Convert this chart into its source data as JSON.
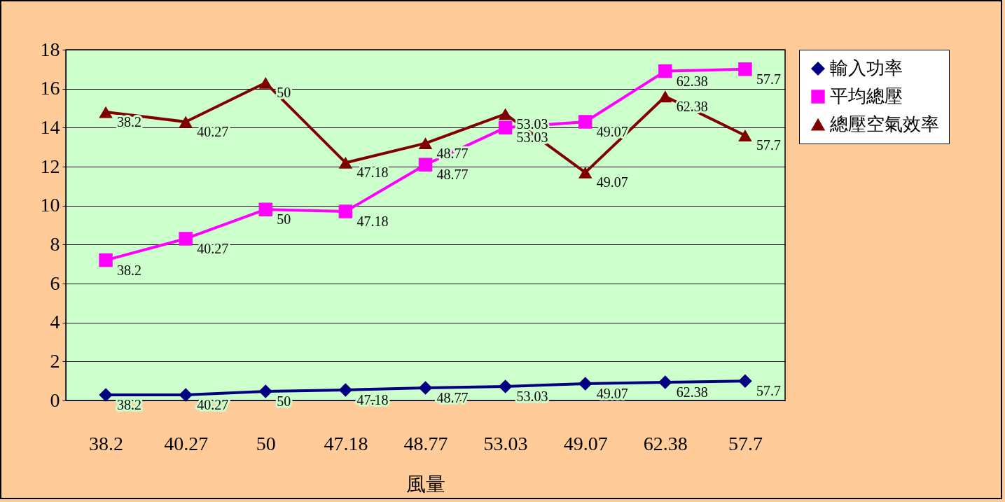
{
  "chart_data": {
    "type": "line",
    "xlabel": "風量",
    "categories": [
      "38.2",
      "40.27",
      "50",
      "47.18",
      "48.77",
      "53.03",
      "49.07",
      "62.38",
      "57.7"
    ],
    "series": [
      {
        "name": "輸入功率",
        "color": "#000080",
        "marker": "diamond",
        "values": [
          0.29,
          0.29,
          0.47,
          0.54,
          0.65,
          0.72,
          0.86,
          0.93,
          1.0
        ]
      },
      {
        "name": "平均總壓",
        "color": "#ff00ff",
        "marker": "square",
        "values": [
          7.2,
          8.3,
          9.8,
          9.7,
          12.1,
          14.0,
          14.3,
          16.9,
          17.0
        ]
      },
      {
        "name": "總壓空氣效率",
        "color": "#800000",
        "marker": "triangle",
        "values": [
          14.8,
          14.3,
          16.3,
          12.2,
          13.2,
          14.7,
          11.7,
          15.6,
          13.6
        ]
      }
    ],
    "annotations": [
      {
        "text": "38.2",
        "x": "38.2",
        "y": 0.29
      },
      {
        "text": "40.27",
        "x": "40.27",
        "y": 0.29
      },
      {
        "text": "50",
        "x": "50",
        "y": 0.47
      },
      {
        "text": "47.18",
        "x": "47.18",
        "y": 0.54
      },
      {
        "text": "48.77",
        "x": "48.77",
        "y": 0.65
      },
      {
        "text": "53.03",
        "x": "53.03",
        "y": 0.72
      },
      {
        "text": "49.07",
        "x": "49.07",
        "y": 0.86
      },
      {
        "text": "62.38",
        "x": "62.38",
        "y": 0.93
      },
      {
        "text": "57.7",
        "x": "57.7",
        "y": 1.0
      },
      {
        "text": "38.2",
        "x": "38.2",
        "y": 7.2
      },
      {
        "text": "40.27",
        "x": "40.27",
        "y": 8.3
      },
      {
        "text": "50",
        "x": "50",
        "y": 9.8
      },
      {
        "text": "47.18",
        "x": "47.18",
        "y": 9.7
      },
      {
        "text": "48.77",
        "x": "48.77",
        "y": 12.1
      },
      {
        "text": "53.03",
        "x": "53.03",
        "y": 14.0
      },
      {
        "text": "49.07",
        "x": "49.07",
        "y": 14.3
      },
      {
        "text": "62.38",
        "x": "62.38",
        "y": 16.9
      },
      {
        "text": "57.7",
        "x": "57.7",
        "y": 17.0
      },
      {
        "text": "38.2",
        "x": "38.2",
        "y": 14.8
      },
      {
        "text": "40.27",
        "x": "40.27",
        "y": 14.3
      },
      {
        "text": "50",
        "x": "50",
        "y": 16.3
      },
      {
        "text": "47.18",
        "x": "47.18",
        "y": 12.2
      },
      {
        "text": "48.77",
        "x": "48.77",
        "y": 13.2
      },
      {
        "text": "53.03",
        "x": "53.03",
        "y": 14.7
      },
      {
        "text": "49.07",
        "x": "49.07",
        "y": 11.7
      },
      {
        "text": "62.38",
        "x": "62.38",
        "y": 15.6
      },
      {
        "text": "57.7",
        "x": "57.7",
        "y": 13.6
      }
    ],
    "ylim": [
      0,
      18
    ],
    "yticks": [
      0,
      2,
      4,
      6,
      8,
      10,
      12,
      14,
      16,
      18
    ],
    "grid": "y",
    "legend": "right",
    "line_style": "solid"
  }
}
